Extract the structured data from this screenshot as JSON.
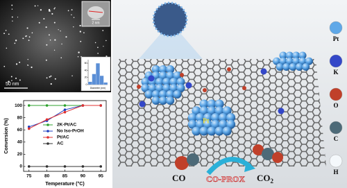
{
  "micrograph": {
    "scale_bar": "50 nm",
    "inset_scale_bar": "2 nm"
  },
  "chart_data": [
    {
      "type": "line",
      "x_label": "Temperature (°C)",
      "y_label": "Conversion (%)",
      "x": [
        75,
        80,
        85,
        90,
        95
      ],
      "series": [
        {
          "name": "2K-Pt/AC",
          "color": "#2ca02c",
          "values": [
            100,
            100,
            100,
            100,
            100
          ]
        },
        {
          "name": "No Iso-PrOH",
          "color": "#1f3fbf",
          "values": [
            65,
            75,
            93,
            100,
            100
          ]
        },
        {
          "name": "Pt/AC",
          "color": "#e03030",
          "values": [
            62,
            77,
            89,
            100,
            100
          ]
        },
        {
          "name": "AC",
          "color": "#333333",
          "values": [
            0,
            0,
            0,
            0,
            0
          ]
        }
      ],
      "xlim": [
        73.5,
        96.5
      ],
      "ylim": [
        -8,
        108
      ],
      "xticks": [
        75,
        80,
        85,
        90,
        95
      ],
      "yticks": [
        0,
        20,
        40,
        60,
        80,
        100
      ],
      "legend": "center"
    },
    {
      "type": "histogram",
      "x_label": "Diameter (nm)",
      "bins": [
        1.0,
        1.5,
        2.0,
        2.5,
        3.0,
        3.5
      ],
      "values": [
        8,
        30,
        60,
        25,
        6
      ],
      "color": "#5b8fd6",
      "ylim": [
        0,
        70
      ],
      "yticks": [
        0,
        20,
        40,
        60
      ]
    }
  ],
  "schematic": {
    "cluster_label": "Pt",
    "reactant": "CO",
    "process": "CO-PROX",
    "product": {
      "base": "CO",
      "sub": "2"
    }
  },
  "atom_legend": [
    {
      "label": "Pt",
      "color": "#5fa8e8"
    },
    {
      "label": "K",
      "color": "#3347c8"
    },
    {
      "label": "O",
      "color": "#c0402a"
    },
    {
      "label": "C",
      "color": "#4d6a78"
    },
    {
      "label": "H",
      "color": "#f4f8fb"
    }
  ]
}
